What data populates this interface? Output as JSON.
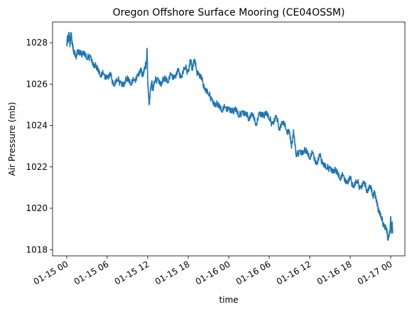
{
  "chart_data": {
    "type": "line",
    "title": "Oregon Offshore Surface Mooring (CE04OSSM)",
    "xlabel": "time",
    "ylabel": "Air Pressure (mb)",
    "xlim_hours": [
      -2.1,
      50.1
    ],
    "ylim": [
      1017.7,
      1029.0
    ],
    "x_ticks": [
      {
        "hour": 0,
        "label": "01-15 00"
      },
      {
        "hour": 6,
        "label": "01-15 06"
      },
      {
        "hour": 12,
        "label": "01-15 12"
      },
      {
        "hour": 18,
        "label": "01-15 18"
      },
      {
        "hour": 24,
        "label": "01-16 00"
      },
      {
        "hour": 30,
        "label": "01-16 06"
      },
      {
        "hour": 36,
        "label": "01-16 12"
      },
      {
        "hour": 42,
        "label": "01-16 18"
      },
      {
        "hour": 48,
        "label": "01-17 00"
      }
    ],
    "y_ticks": [
      1018,
      1020,
      1022,
      1024,
      1026,
      1028
    ],
    "grid": false,
    "series": [
      {
        "color": "#1f77b4",
        "x_hours": [
          0,
          0.1,
          0.2,
          0.3,
          0.4,
          0.5,
          0.6,
          0.8,
          1.0,
          1.3,
          1.6,
          2.0,
          2.5,
          3.0,
          3.5,
          4.0,
          4.5,
          5.0,
          5.5,
          6.0,
          6.5,
          7.0,
          7.5,
          8.0,
          8.5,
          9.0,
          9.5,
          10.0,
          10.5,
          11.0,
          11.3,
          11.6,
          11.8,
          11.9,
          12.0,
          12.1,
          12.2,
          12.4,
          12.6,
          12.8,
          13.0,
          13.5,
          14.0,
          14.5,
          15.0,
          15.5,
          16.0,
          16.5,
          17.0,
          17.5,
          18.0,
          18.3,
          18.6,
          18.9,
          19.2,
          19.5,
          20.0,
          20.5,
          21.0,
          21.5,
          22.0,
          22.5,
          23.0,
          23.5,
          24.0,
          24.5,
          25.0,
          25.5,
          26.0,
          26.5,
          27.0,
          27.5,
          28.0,
          28.5,
          29.0,
          29.5,
          30.0,
          30.5,
          31.0,
          31.5,
          32.0,
          32.5,
          33.0,
          33.3,
          33.6,
          34.0,
          34.5,
          35.0,
          35.5,
          36.0,
          36.5,
          37.0,
          37.5,
          38.0,
          38.5,
          39.0,
          39.5,
          40.0,
          40.5,
          41.0,
          41.5,
          42.0,
          42.5,
          43.0,
          43.5,
          44.0,
          44.5,
          45.0,
          45.3,
          45.6,
          46.0,
          46.3,
          46.6,
          47.0,
          47.3,
          47.6,
          47.9,
          48.0,
          48.1,
          48.2,
          48.3
        ],
        "values": [
          1027.9,
          1028.3,
          1028.0,
          1028.5,
          1028.2,
          1027.9,
          1028.4,
          1028.1,
          1027.6,
          1027.3,
          1027.6,
          1027.4,
          1027.6,
          1027.2,
          1027.4,
          1026.8,
          1026.9,
          1026.4,
          1026.5,
          1026.3,
          1026.4,
          1026.0,
          1026.2,
          1026.1,
          1025.9,
          1026.4,
          1026.0,
          1026.2,
          1026.4,
          1026.6,
          1026.5,
          1026.8,
          1027.0,
          1027.7,
          1026.2,
          1025.6,
          1025.0,
          1025.7,
          1026.0,
          1025.8,
          1026.1,
          1026.3,
          1025.9,
          1026.4,
          1026.1,
          1026.5,
          1026.3,
          1026.6,
          1026.4,
          1026.8,
          1026.6,
          1027.1,
          1026.8,
          1027.2,
          1026.7,
          1026.5,
          1026.2,
          1025.8,
          1025.5,
          1025.3,
          1024.9,
          1025.1,
          1024.7,
          1024.9,
          1024.8,
          1024.6,
          1024.9,
          1024.4,
          1024.7,
          1024.5,
          1024.4,
          1024.6,
          1024.0,
          1024.6,
          1024.4,
          1024.7,
          1024.3,
          1024.1,
          1024.4,
          1023.9,
          1024.2,
          1023.8,
          1023.7,
          1022.9,
          1023.8,
          1022.5,
          1022.8,
          1022.6,
          1022.9,
          1022.4,
          1022.7,
          1022.1,
          1022.5,
          1022.2,
          1021.9,
          1022.0,
          1021.7,
          1021.9,
          1021.4,
          1021.6,
          1021.2,
          1021.4,
          1021.1,
          1021.3,
          1021.0,
          1021.2,
          1020.9,
          1021.1,
          1020.6,
          1020.8,
          1020.1,
          1019.9,
          1019.5,
          1019.2,
          1019.0,
          1018.6,
          1018.9,
          1019.6,
          1018.8,
          1019.2,
          1018.9
        ]
      }
    ]
  }
}
